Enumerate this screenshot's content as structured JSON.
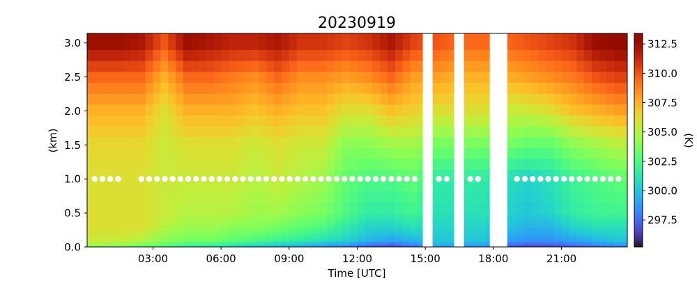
{
  "chart_data": {
    "type": "heatmap",
    "title": "20230919",
    "xlabel": "Time [UTC]",
    "ylabel": "(km)",
    "colorbar_label": "(K)",
    "colormap": "turbo",
    "xlim_hours": [
      0.1,
      23.9
    ],
    "ylim": [
      0,
      3.14
    ],
    "clim": [
      295.2,
      313.4
    ],
    "x_ticks": [
      {
        "h": 3,
        "label": "03:00"
      },
      {
        "h": 6,
        "label": "06:00"
      },
      {
        "h": 9,
        "label": "09:00"
      },
      {
        "h": 12,
        "label": "12:00"
      },
      {
        "h": 15,
        "label": "15:00"
      },
      {
        "h": 18,
        "label": "18:00"
      },
      {
        "h": 21,
        "label": "21:00"
      }
    ],
    "y_ticks": [
      {
        "v": 0,
        "label": "0.0"
      },
      {
        "v": 0.5,
        "label": "0.5"
      },
      {
        "v": 1,
        "label": "1.0"
      },
      {
        "v": 1.5,
        "label": "1.5"
      },
      {
        "v": 2,
        "label": "2.0"
      },
      {
        "v": 2.5,
        "label": "2.5"
      },
      {
        "v": 3,
        "label": "3.0"
      }
    ],
    "colorbar_ticks": [
      {
        "v": 297.5,
        "label": "297.5"
      },
      {
        "v": 300,
        "label": "300.0"
      },
      {
        "v": 302.5,
        "label": "302.5"
      },
      {
        "v": 305,
        "label": "305.0"
      },
      {
        "v": 307.5,
        "label": "307.5"
      },
      {
        "v": 310,
        "label": "310.0"
      },
      {
        "v": 312.5,
        "label": "312.5"
      }
    ],
    "levels_km": [
      0,
      0.1,
      0.3,
      0.5,
      1.0,
      1.5,
      2.0,
      2.5,
      3.0
    ],
    "hours": [
      0.5,
      1.5,
      2.5,
      3.5,
      4.5,
      5.5,
      6.5,
      7.5,
      8.5,
      9.5,
      10.5,
      11.5,
      12.5,
      13.5,
      14.5,
      15.5,
      16.5,
      17.5,
      18.5,
      19.5,
      20.5,
      21.5,
      22.5,
      23.5
    ],
    "values_K": [
      [
        304,
        305.5,
        306,
        306,
        306,
        306.3,
        307.5,
        309.5,
        312.5
      ],
      [
        303.5,
        305.5,
        306,
        306,
        306,
        306.3,
        307.5,
        309.5,
        312.5
      ],
      [
        303,
        305,
        306,
        306,
        306,
        306.3,
        307.5,
        309.5,
        312
      ],
      [
        302.5,
        304,
        305,
        305.5,
        305.5,
        305.5,
        306,
        307.5,
        310
      ],
      [
        301.5,
        303.5,
        304.5,
        305,
        305.5,
        306,
        307.5,
        309.5,
        312.5
      ],
      [
        301,
        303.5,
        304.5,
        305,
        305.5,
        306,
        307.5,
        309.5,
        312
      ],
      [
        300.5,
        303,
        304,
        305,
        305.5,
        306,
        307.5,
        309,
        311.5
      ],
      [
        300,
        302.5,
        304,
        304.5,
        305,
        305.5,
        307,
        308.5,
        311.5
      ],
      [
        299.5,
        302,
        303.5,
        304.5,
        305.5,
        306,
        307.5,
        309.5,
        312
      ],
      [
        299,
        301.5,
        303,
        304,
        305,
        305.5,
        307,
        308.5,
        311
      ],
      [
        298.5,
        301,
        302.5,
        303.5,
        304.5,
        305.5,
        307,
        308.5,
        311
      ],
      [
        298,
        300.5,
        301.5,
        302.5,
        303,
        304,
        306,
        308,
        310.5
      ],
      [
        297,
        299.5,
        300.5,
        301.5,
        302.5,
        304,
        306,
        308.5,
        311
      ],
      [
        296.5,
        299,
        300.5,
        301.5,
        302.5,
        304.5,
        307,
        309.5,
        312
      ],
      [
        297.5,
        299.5,
        301,
        302,
        303,
        304.5,
        306.5,
        308,
        310.5
      ],
      [
        299,
        300,
        300.5,
        301,
        301.5,
        303.5,
        306,
        308,
        310
      ],
      [
        298.5,
        300,
        300.5,
        301,
        301.5,
        303.5,
        306,
        307.5,
        309.5
      ],
      [
        298.5,
        300,
        300.5,
        301,
        301.5,
        303.5,
        306,
        307.5,
        309.5
      ],
      [
        297,
        299,
        300,
        300.5,
        301,
        303.5,
        305.5,
        307.5,
        309.5
      ],
      [
        296.5,
        298.5,
        299.5,
        300,
        300.5,
        303,
        305.5,
        308,
        310
      ],
      [
        296.5,
        298.5,
        299.5,
        300.5,
        301,
        303,
        306,
        308.5,
        310.5
      ],
      [
        297,
        299,
        300.5,
        301.5,
        302,
        304,
        307,
        309,
        311
      ],
      [
        297.5,
        299.5,
        301,
        302,
        302.5,
        304.5,
        307.5,
        310,
        312.5
      ],
      [
        298,
        300,
        301,
        302,
        303,
        305,
        308,
        310.5,
        313
      ]
    ],
    "missing_hours": [
      [
        14.89,
        15.32
      ],
      [
        16.27,
        16.7
      ],
      [
        17.84,
        18.61
      ]
    ],
    "markers": {
      "height_km": 1.0,
      "step_hours": 0.344,
      "ranges": [
        [
          0.43,
          1.8
        ],
        [
          2.49,
          14.6
        ],
        [
          15.6,
          15.97
        ],
        [
          16.98,
          17.35
        ],
        [
          19.04,
          23.85
        ]
      ]
    }
  }
}
